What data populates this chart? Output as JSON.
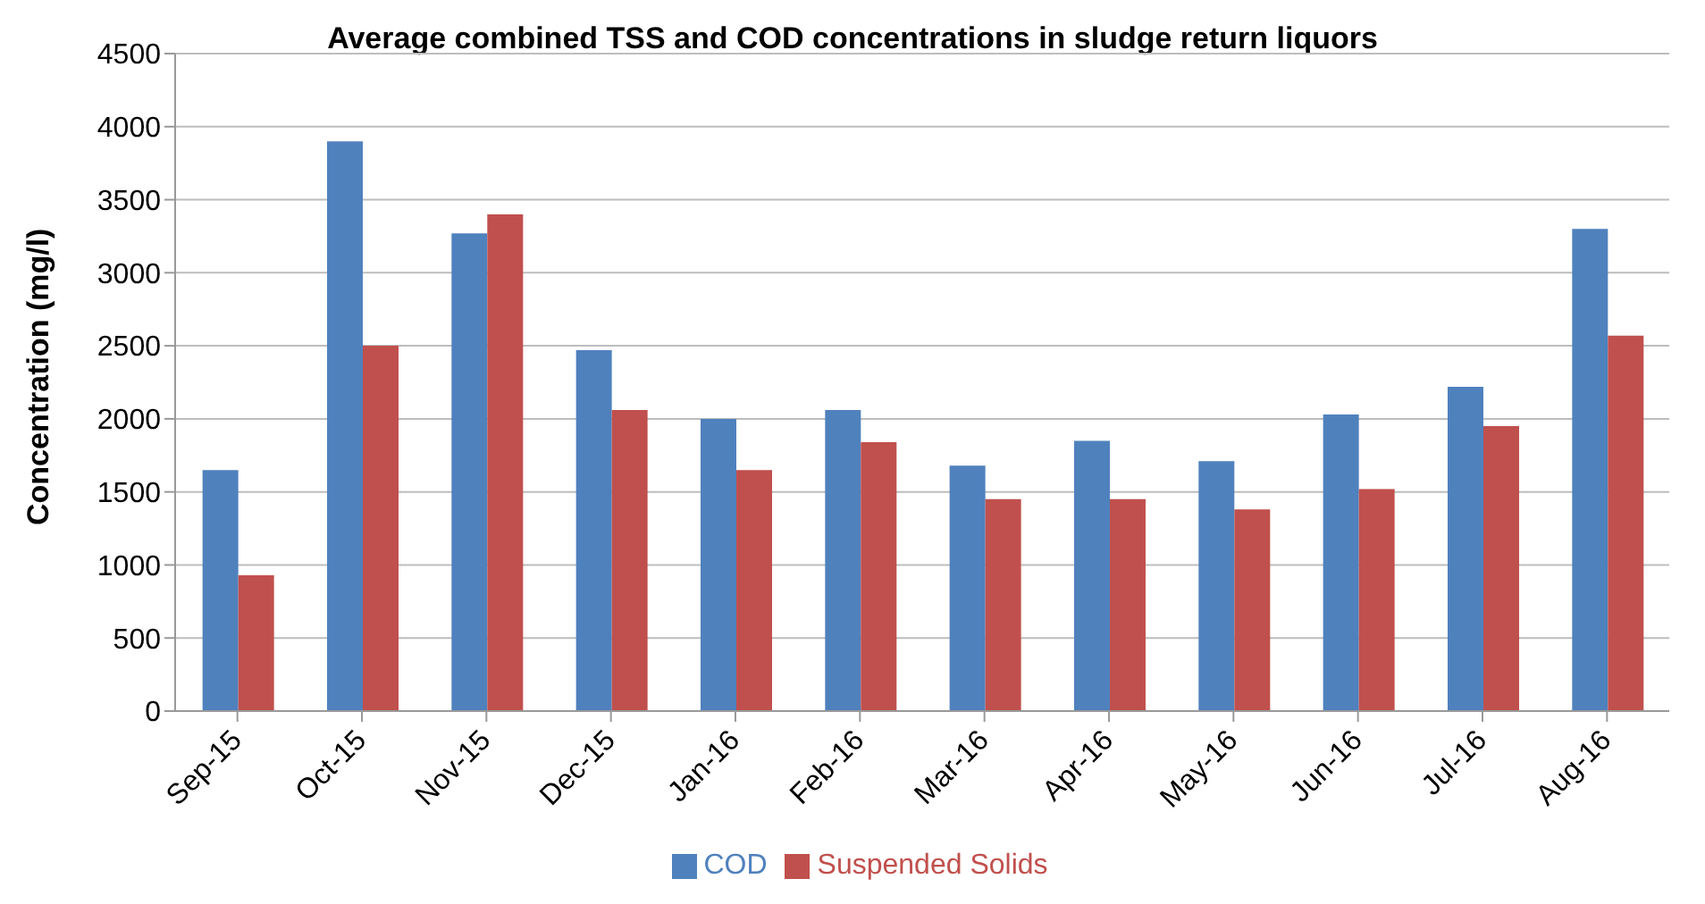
{
  "chart_data": {
    "type": "bar",
    "title": "Average combined TSS and COD concentrations in sludge return liquors",
    "ylabel": "Concentration (mg/l)",
    "categories": [
      "Sep-15",
      "Oct-15",
      "Nov-15",
      "Dec-15",
      "Jan-16",
      "Feb-16",
      "Mar-16",
      "Apr-16",
      "May-16",
      "Jun-16",
      "Jul-16",
      "Aug-16"
    ],
    "series": [
      {
        "name": "COD",
        "color": "#4f81bd",
        "values": [
          1650,
          3900,
          3270,
          2470,
          2000,
          2060,
          1680,
          1850,
          1710,
          2030,
          2220,
          3300
        ]
      },
      {
        "name": "Suspended Solids",
        "color": "#c0504d",
        "values": [
          930,
          2500,
          3400,
          2060,
          1650,
          1840,
          1450,
          1450,
          1380,
          1520,
          1950,
          2570
        ]
      }
    ],
    "ylim": [
      0,
      4500
    ],
    "yticks": [
      0,
      500,
      1000,
      1500,
      2000,
      2500,
      3000,
      3500,
      4000,
      4500
    ],
    "grid": "y",
    "legend": "bottom"
  }
}
